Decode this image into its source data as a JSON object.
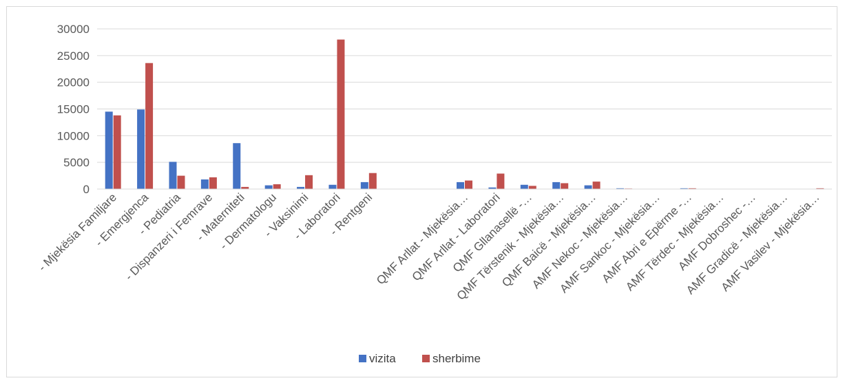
{
  "chart_data": {
    "type": "bar",
    "title": "",
    "xlabel": "",
    "ylabel": "",
    "ylim": [
      0,
      30000
    ],
    "yticks": [
      "0",
      "5000",
      "10000",
      "15000",
      "20000",
      "25000",
      "30000"
    ],
    "ytick_values": [
      0,
      5000,
      10000,
      15000,
      20000,
      25000,
      30000
    ],
    "grid": true,
    "legend_position": "bottom",
    "categories": [
      "- Mjekësia Familjare",
      "- Emergjenca",
      "- Pediatria",
      "- Dispanzeri i Femrave",
      "- Materniteti",
      "- Dermatologu",
      "- Vaksinimi",
      "- Laboratori",
      "- Rentgeni",
      "",
      "",
      "QMF Arllat - Mjekësia…",
      "QMF Arllat - Laboratori",
      "QMF Gllanasellë -…",
      "QMF Tërstenik - Mjekësia…",
      "QMF Baicë - Mjekësia…",
      "AMF Nekoc - Mjekësia…",
      "AMF Sankoc - Mjekësia…",
      "AMF Abri e Epërme -…",
      "AMF Tërdec - Mjekësia…",
      "AMF Dobroshec -…",
      "AMF Gradicë - Mjekësia…",
      "AMF Vasilev - Mjekësia…"
    ],
    "series": [
      {
        "name": "vizita",
        "color": "#4472c4",
        "values": [
          14500,
          14900,
          5100,
          1800,
          8600,
          700,
          400,
          800,
          1300,
          0,
          0,
          1300,
          300,
          800,
          1300,
          700,
          150,
          50,
          150,
          0,
          50,
          0,
          0
        ]
      },
      {
        "name": "sherbime",
        "color": "#c0504d",
        "values": [
          13800,
          23600,
          2500,
          2200,
          400,
          900,
          2600,
          28000,
          3000,
          0,
          0,
          1600,
          2900,
          600,
          1100,
          1400,
          100,
          0,
          150,
          0,
          0,
          0,
          150
        ]
      }
    ]
  }
}
